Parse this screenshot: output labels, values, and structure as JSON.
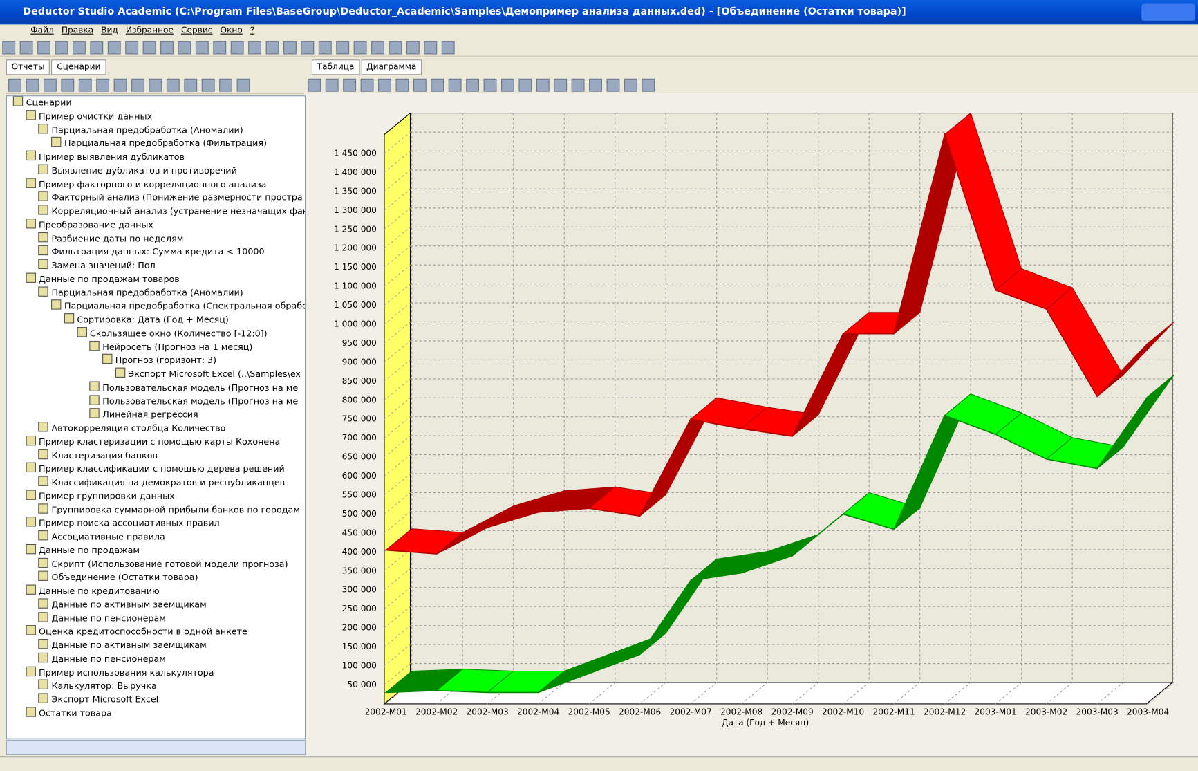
{
  "window": {
    "title": "Deductor Studio Academic (C:\\Program Files\\BaseGroup\\Deductor_Academic\\Samples\\Демопример анализа данных.ded) - [Объединение (Остатки товара)]",
    "menu": [
      "Файл",
      "Правка",
      "Вид",
      "Избранное",
      "Сервис",
      "Окно",
      "?"
    ]
  },
  "left_tabs": [
    "Отчеты",
    "Сценарии"
  ],
  "tree": [
    {
      "label": "Сценарии",
      "children": [
        {
          "label": "Пример очистки данных",
          "children": [
            {
              "label": "Парциальная предобработка (Аномалии)",
              "children": [
                {
                  "label": "Парциальная предобработка (Фильтрация)"
                }
              ]
            }
          ]
        },
        {
          "label": "Пример выявления дубликатов",
          "children": [
            {
              "label": "Выявление дубликатов и противоречий"
            }
          ]
        },
        {
          "label": "Пример факторного и корреляционного анализа",
          "children": [
            {
              "label": "Факторный анализ (Понижение размерности простра"
            },
            {
              "label": "Корреляционный анализ (устранение незначащих факт"
            }
          ]
        },
        {
          "label": "Преобразование данных",
          "children": [
            {
              "label": "Разбиение даты по неделям"
            },
            {
              "label": "Фильтрация данных: Сумма кредита < 10000"
            },
            {
              "label": "Замена значений: Пол"
            }
          ]
        },
        {
          "label": "Данные по продажам товаров",
          "children": [
            {
              "label": "Парциальная предобработка (Аномалии)",
              "children": [
                {
                  "label": "Парциальная предобработка (Спектральная обрабо",
                  "children": [
                    {
                      "label": "Сортировка: Дата (Год + Месяц)",
                      "children": [
                        {
                          "label": "Скользящее окно (Количество [-12:0])",
                          "children": [
                            {
                              "label": "Нейросеть (Прогноз на 1 месяц)",
                              "children": [
                                {
                                  "label": "Прогноз (горизонт: 3)",
                                  "children": [
                                    {
                                      "label": "Экспорт Microsoft Excel (..\\Samples\\ex"
                                    }
                                  ]
                                }
                              ]
                            },
                            {
                              "label": "Пользовательская модель (Прогноз на ме"
                            },
                            {
                              "label": "Пользовательская модель (Прогноз на ме"
                            },
                            {
                              "label": "Линейная регрессия"
                            }
                          ]
                        }
                      ]
                    }
                  ]
                }
              ]
            },
            {
              "label": "Автокорреляция столбца Количество"
            }
          ]
        },
        {
          "label": "Пример кластеризации с помощью карты Кохонена",
          "children": [
            {
              "label": "Кластеризация банков"
            }
          ]
        },
        {
          "label": "Пример классификации с помощью дерева решений",
          "children": [
            {
              "label": "Классификация на демократов и республиканцев"
            }
          ]
        },
        {
          "label": "Пример группировки данных",
          "children": [
            {
              "label": "Группировка суммарной прибыли банков по городам"
            }
          ]
        },
        {
          "label": "Пример поиска ассоциативных правил",
          "children": [
            {
              "label": "Ассоциативные правила"
            }
          ]
        },
        {
          "label": "Данные по продажам",
          "children": [
            {
              "label": "Скрипт (Использование готовой модели прогноза)"
            },
            {
              "label": "Объединение (Остатки товара)"
            }
          ]
        },
        {
          "label": "Данные по кредитованию",
          "children": [
            {
              "label": "Данные по активным заемщикам"
            },
            {
              "label": "Данные по пенсионерам"
            }
          ]
        },
        {
          "label": "Оценка кредитоспособности в одной анкете",
          "children": [
            {
              "label": "Данные по активным заемщикам"
            },
            {
              "label": "Данные по пенсионерам"
            }
          ]
        },
        {
          "label": "Пример использования калькулятора",
          "children": [
            {
              "label": "Калькулятор: Выручка"
            },
            {
              "label": "Экспорт Microsoft Excel"
            }
          ]
        },
        {
          "label": "Остатки товара"
        }
      ]
    }
  ],
  "right_tabs": [
    "Таблица",
    "Диаграмма"
  ],
  "chart_data": {
    "type": "line3d",
    "x_label": "Дата (Год + Месяц)",
    "categories": [
      "2002-M01",
      "2002-M02",
      "2002-M03",
      "2002-M04",
      "2002-M05",
      "2002-M06",
      "2002-M07",
      "2002-M08",
      "2002-M09",
      "2002-M10",
      "2002-M11",
      "2002-M12",
      "2003-M01",
      "2003-M02",
      "2003-M03",
      "2003-M04"
    ],
    "series": [
      {
        "color": "#ff0000",
        "values": [
          405000,
          395000,
          465000,
          505000,
          515000,
          495000,
          750000,
          725000,
          705000,
          975000,
          975000,
          1500000,
          1090000,
          1040000,
          810000,
          950000
        ]
      },
      {
        "color": "#00ff00",
        "values": [
          30000,
          35000,
          30000,
          30000,
          80000,
          130000,
          325000,
          345000,
          390000,
          500000,
          460000,
          760000,
          710000,
          645000,
          620000,
          810000
        ]
      }
    ],
    "ylim": [
      0,
      1500000
    ],
    "yticks": [
      {
        "value": 50000,
        "label": "50 000"
      },
      {
        "value": 100000,
        "label": "100 000"
      },
      {
        "value": 150000,
        "label": "150 000"
      },
      {
        "value": 200000,
        "label": "200 000"
      },
      {
        "value": 250000,
        "label": "250 000"
      },
      {
        "value": 300000,
        "label": "300 000"
      },
      {
        "value": 350000,
        "label": "350 000"
      },
      {
        "value": 400000,
        "label": "400 000"
      },
      {
        "value": 450000,
        "label": "450 000"
      },
      {
        "value": 500000,
        "label": "500 000"
      },
      {
        "value": 550000,
        "label": "550 000"
      },
      {
        "value": 600000,
        "label": "600 000"
      },
      {
        "value": 650000,
        "label": "650 000"
      },
      {
        "value": 700000,
        "label": "700 000"
      },
      {
        "value": 750000,
        "label": "750 000"
      },
      {
        "value": 800000,
        "label": "800 000"
      },
      {
        "value": 850000,
        "label": "850 000"
      },
      {
        "value": 900000,
        "label": "900 000"
      },
      {
        "value": 950000,
        "label": "950 000"
      },
      {
        "value": 1000000,
        "label": "1 000 000"
      },
      {
        "value": 1050000,
        "label": "1 050 000"
      },
      {
        "value": 1100000,
        "label": "1 100 000"
      },
      {
        "value": 1150000,
        "label": "1 150 000"
      },
      {
        "value": 1200000,
        "label": "1 200 000"
      },
      {
        "value": 1250000,
        "label": "1 250 000"
      },
      {
        "value": 1300000,
        "label": "1 300 000"
      },
      {
        "value": 1350000,
        "label": "1 350 000"
      },
      {
        "value": 1400000,
        "label": "1 400 000"
      },
      {
        "value": 1450000,
        "label": "1 450 000"
      }
    ],
    "grid": true
  }
}
